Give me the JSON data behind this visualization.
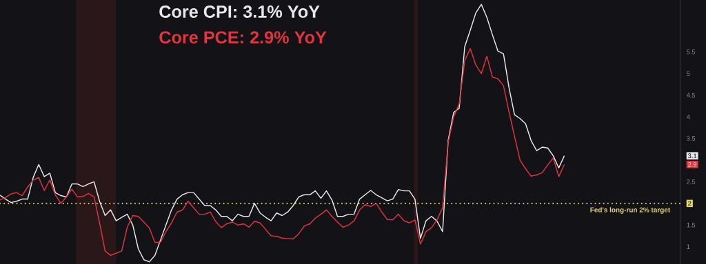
{
  "chart_data": {
    "type": "line",
    "categories": [
      null,
      null,
      null,
      null,
      null,
      null,
      null,
      null,
      null,
      null,
      null,
      null,
      null,
      null,
      null,
      null,
      null,
      null,
      null,
      null,
      null,
      null,
      null,
      null,
      null,
      null,
      null,
      null,
      null,
      null,
      null,
      null,
      null,
      null,
      null,
      null,
      null,
      null,
      null,
      null,
      null,
      null,
      null,
      null,
      null,
      null,
      null,
      null,
      null,
      null,
      null,
      null,
      null,
      null,
      null,
      null,
      null,
      null,
      null,
      null,
      null,
      null,
      null,
      null,
      null,
      null,
      null,
      null,
      null,
      null,
      null,
      null,
      null,
      null,
      null,
      null,
      null,
      null,
      null,
      null,
      null,
      null,
      null,
      null,
      null,
      null,
      null,
      null,
      null,
      null,
      null,
      null,
      null,
      null,
      null,
      null,
      null,
      null,
      null,
      null,
      null,
      null,
      null,
      null,
      null,
      null,
      null,
      null,
      null,
      null,
      null,
      null,
      null,
      null,
      null,
      null,
      null,
      null,
      null,
      null,
      null,
      null,
      null,
      null
    ],
    "series": [
      {
        "name": "Core CPI: 3.1% YoY",
        "color": "#e8e8ea",
        "values": [
          2.19,
          2.1,
          2.02,
          2.05,
          2.1,
          2.1,
          2.6,
          2.9,
          2.62,
          2.7,
          2.25,
          2.18,
          2.15,
          2.45,
          2.45,
          2.39,
          2.45,
          2.5,
          2.05,
          1.72,
          1.85,
          1.6,
          1.68,
          1.75,
          1.5,
          0.95,
          0.7,
          0.65,
          0.8,
          1.15,
          1.5,
          1.85,
          2.1,
          2.2,
          2.25,
          2.25,
          2.1,
          1.95,
          1.95,
          1.85,
          1.7,
          1.7,
          1.6,
          1.75,
          1.7,
          1.7,
          2.0,
          1.78,
          1.68,
          1.6,
          1.78,
          1.72,
          1.8,
          1.95,
          2.15,
          2.2,
          2.2,
          2.29,
          2.12,
          2.29,
          2.08,
          1.7,
          1.7,
          1.75,
          1.75,
          2.1,
          2.2,
          2.3,
          2.2,
          2.13,
          2.06,
          2.1,
          2.32,
          2.29,
          2.29,
          2.1,
          1.19,
          1.6,
          1.7,
          1.59,
          1.35,
          3.45,
          4.1,
          4.2,
          5.62,
          6.0,
          6.4,
          6.6,
          6.3,
          5.9,
          5.52,
          5.46,
          4.68,
          4.05,
          3.96,
          3.84,
          3.45,
          3.22,
          3.3,
          3.28,
          3.1,
          2.82,
          3.1,
          null,
          null,
          null,
          null,
          null,
          null,
          null,
          null,
          null,
          null,
          null,
          null,
          null,
          null,
          null,
          null,
          null,
          null,
          null,
          null,
          null
        ]
      },
      {
        "name": "Core PCE: 2.9% YoY",
        "color": "#e0353f",
        "values": [
          2.08,
          2.14,
          2.22,
          2.25,
          2.18,
          2.38,
          2.54,
          2.6,
          2.3,
          2.54,
          2.2,
          2.0,
          2.15,
          2.33,
          2.15,
          2.16,
          2.23,
          2.15,
          1.55,
          0.9,
          0.8,
          0.85,
          0.9,
          1.45,
          1.72,
          1.7,
          1.57,
          1.43,
          1.1,
          1.1,
          1.35,
          1.55,
          1.8,
          1.85,
          2.05,
          1.9,
          1.75,
          1.75,
          1.8,
          1.58,
          1.44,
          1.53,
          1.57,
          1.5,
          1.53,
          1.45,
          1.59,
          1.55,
          1.4,
          1.25,
          1.24,
          1.2,
          1.19,
          1.18,
          1.3,
          1.48,
          1.53,
          1.66,
          1.75,
          1.85,
          1.7,
          1.57,
          1.45,
          1.5,
          1.6,
          1.85,
          1.97,
          1.93,
          2.0,
          1.8,
          1.63,
          1.62,
          1.75,
          1.6,
          1.55,
          1.62,
          1.06,
          1.35,
          1.44,
          1.62,
          1.9,
          3.4,
          4.0,
          4.3,
          5.3,
          5.58,
          5.2,
          5.0,
          5.4,
          4.92,
          4.88,
          4.72,
          4.12,
          3.55,
          3.0,
          2.8,
          2.63,
          2.66,
          2.71,
          2.89,
          3.05,
          2.62,
          2.9,
          null,
          null,
          null,
          null,
          null,
          null,
          null,
          null,
          null,
          null,
          null,
          null,
          null,
          null,
          null,
          null,
          null,
          null,
          null,
          null,
          null
        ]
      }
    ],
    "ylim": [
      0.6,
      6.7
    ],
    "yticks": [
      1,
      1.5,
      2,
      2.5,
      2.9,
      3.1,
      3.5,
      4,
      4.5,
      5,
      5.5
    ],
    "tick_labels": "y",
    "legend": "top",
    "ref_lines": [
      {
        "axis": "y",
        "value": 2,
        "label": "Fed's long-run 2% target",
        "color": "#e6d86a",
        "line_style": "dotted"
      }
    ]
  }
}
